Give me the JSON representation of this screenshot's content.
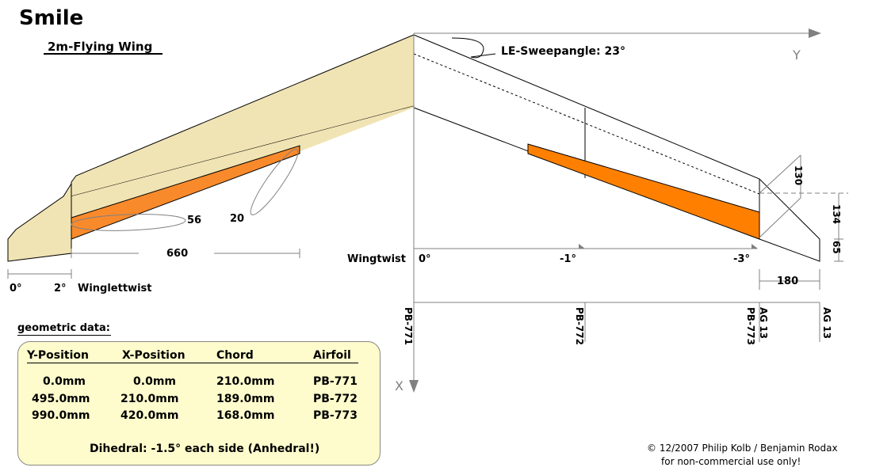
{
  "title": "Smile",
  "subtitle": "2m-Flying Wing",
  "sweep_label": "LE-Sweepangle: 23°",
  "axis_y_label": "Y",
  "axis_x_label": "X",
  "wingtwist_label": "Wingtwist",
  "wingtwist_values": [
    "0°",
    "-1°",
    "-3°"
  ],
  "winglet_twist": {
    "a": "0°",
    "b": "2°",
    "label": "Winglettwist"
  },
  "dimensions": {
    "span_660": "660",
    "elevon_56": "56",
    "elevon_20": "20",
    "d130": "130",
    "d134": "134",
    "d65": "65",
    "d180": "180"
  },
  "airfoil_stations": [
    "PB-771",
    "PB-772",
    "PB-773",
    "AG 13",
    "AG 13"
  ],
  "geometric_label": "geometric data:",
  "table": {
    "headers": [
      "Y-Position",
      "X-Position",
      "Chord",
      "Airfoil"
    ],
    "rows": [
      [
        "0.0mm",
        "0.0mm",
        "210.0mm",
        "PB-771"
      ],
      [
        "495.0mm",
        "210.0mm",
        "189.0mm",
        "PB-772"
      ],
      [
        "990.0mm",
        "420.0mm",
        "168.0mm",
        "PB-773"
      ]
    ]
  },
  "dihedral": "Dihedral: -1.5° each side (Anhedral!)",
  "copyright_line1": "© 12/2007  Philip Kolb / Benjamin Rodax",
  "copyright_line2": "for non-commercial use only!",
  "colors": {
    "wing_fill": "#f0e4b4",
    "elevon_fill": "#ff8000",
    "elevon_left": "#f98a2c",
    "table_bg": "#fefccc",
    "axis": "#808080"
  }
}
